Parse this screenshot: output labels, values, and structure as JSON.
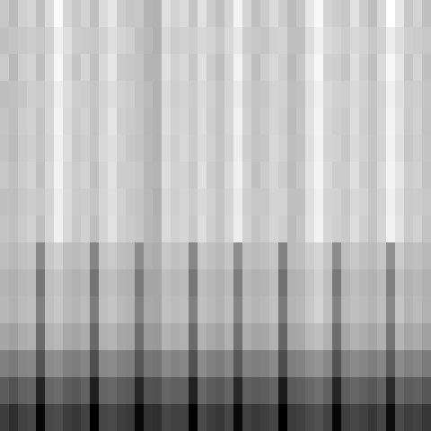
{
  "chart_data": {
    "type": "heatmap",
    "tick_labels": false,
    "cells": [
      [
        178,
        168,
        185,
        190,
        172,
        195,
        222,
        190,
        178,
        188,
        170,
        195,
        205,
        182,
        176,
        178,
        162,
        160,
        198,
        188,
        195,
        176,
        200,
        182,
        172,
        188,
        215,
        190,
        172,
        182,
        195,
        182,
        168,
        178,
        205,
        220,
        188,
        182,
        178,
        200,
        182,
        170,
        192,
        225,
        205,
        178,
        188,
        172
      ],
      [
        172,
        174,
        178,
        182,
        178,
        186,
        212,
        198,
        182,
        180,
        178,
        186,
        198,
        188,
        184,
        172,
        166,
        158,
        192,
        182,
        186,
        184,
        192,
        188,
        178,
        192,
        206,
        182,
        178,
        176,
        186,
        188,
        172,
        172,
        196,
        212,
        194,
        188,
        182,
        192,
        188,
        178,
        186,
        210,
        196,
        184,
        182,
        178
      ],
      [
        180,
        166,
        184,
        188,
        170,
        192,
        218,
        192,
        176,
        190,
        172,
        192,
        204,
        180,
        178,
        176,
        162,
        162,
        198,
        186,
        192,
        178,
        198,
        182,
        170,
        188,
        214,
        188,
        170,
        184,
        192,
        184,
        166,
        178,
        202,
        218,
        186,
        184,
        176,
        198,
        184,
        172,
        194,
        218,
        202,
        176,
        188,
        172
      ],
      [
        170,
        172,
        176,
        184,
        180,
        188,
        210,
        196,
        184,
        182,
        176,
        188,
        196,
        186,
        182,
        174,
        168,
        160,
        194,
        184,
        188,
        182,
        194,
        186,
        176,
        190,
        208,
        184,
        176,
        178,
        188,
        186,
        170,
        174,
        198,
        212,
        192,
        186,
        184,
        194,
        186,
        176,
        188,
        212,
        198,
        182,
        184,
        176
      ],
      [
        176,
        170,
        182,
        186,
        174,
        190,
        216,
        194,
        180,
        186,
        174,
        190,
        202,
        184,
        180,
        176,
        164,
        160,
        196,
        186,
        190,
        180,
        196,
        184,
        174,
        190,
        212,
        186,
        174,
        180,
        190,
        184,
        168,
        176,
        200,
        216,
        190,
        184,
        180,
        196,
        184,
        174,
        190,
        216,
        200,
        180,
        186,
        174
      ],
      [
        174,
        168,
        180,
        184,
        176,
        188,
        212,
        196,
        178,
        184,
        176,
        192,
        198,
        186,
        178,
        174,
        166,
        160,
        194,
        184,
        192,
        182,
        194,
        186,
        176,
        188,
        210,
        184,
        176,
        178,
        192,
        186,
        170,
        174,
        198,
        214,
        188,
        186,
        178,
        194,
        186,
        176,
        188,
        214,
        198,
        178,
        184,
        176
      ],
      [
        178,
        172,
        182,
        188,
        172,
        192,
        214,
        192,
        182,
        188,
        172,
        188,
        200,
        182,
        182,
        178,
        164,
        162,
        196,
        186,
        188,
        178,
        198,
        182,
        174,
        192,
        212,
        188,
        172,
        182,
        190,
        182,
        168,
        178,
        200,
        216,
        192,
        182,
        182,
        198,
        182,
        174,
        192,
        216,
        202,
        182,
        186,
        174
      ],
      [
        172,
        170,
        178,
        182,
        178,
        188,
        210,
        194,
        180,
        182,
        176,
        190,
        198,
        186,
        178,
        174,
        166,
        158,
        192,
        184,
        190,
        182,
        192,
        186,
        176,
        188,
        208,
        184,
        178,
        178,
        188,
        188,
        172,
        172,
        198,
        212,
        188,
        186,
        178,
        192,
        188,
        176,
        188,
        212,
        198,
        180,
        182,
        178
      ],
      [
        176,
        172,
        180,
        186,
        170,
        190,
        212,
        192,
        178,
        186,
        170,
        188,
        200,
        184,
        180,
        176,
        164,
        160,
        194,
        186,
        190,
        178,
        196,
        184,
        174,
        190,
        210,
        186,
        174,
        180,
        190,
        184,
        168,
        176,
        200,
        214,
        190,
        184,
        180,
        196,
        184,
        174,
        190,
        214,
        200,
        180,
        186,
        174
      ],
      [
        170,
        165,
        172,
        175,
        125,
        178,
        185,
        170,
        168,
        172,
        122,
        175,
        180,
        170,
        168,
        128,
        158,
        155,
        178,
        172,
        175,
        124,
        178,
        172,
        166,
        176,
        130,
        172,
        168,
        170,
        176,
        120,
        168,
        170,
        182,
        190,
        176,
        128,
        170,
        178,
        172,
        168,
        176,
        132,
        180,
        168,
        172,
        166
      ],
      [
        162,
        158,
        165,
        168,
        110,
        170,
        175,
        165,
        160,
        165,
        108,
        168,
        172,
        162,
        160,
        112,
        150,
        150,
        170,
        165,
        168,
        110,
        170,
        165,
        158,
        168,
        115,
        165,
        160,
        162,
        170,
        105,
        160,
        162,
        175,
        185,
        170,
        112,
        162,
        170,
        165,
        160,
        168,
        118,
        172,
        160,
        165,
        158
      ],
      [
        165,
        160,
        168,
        170,
        118,
        172,
        178,
        166,
        162,
        168,
        115,
        170,
        175,
        165,
        162,
        120,
        152,
        150,
        172,
        168,
        170,
        118,
        172,
        166,
        160,
        170,
        122,
        168,
        162,
        165,
        172,
        112,
        162,
        165,
        178,
        188,
        172,
        120,
        165,
        172,
        168,
        162,
        170,
        125,
        175,
        162,
        168,
        160
      ],
      [
        150,
        145,
        155,
        158,
        100,
        160,
        165,
        152,
        148,
        155,
        98,
        158,
        162,
        150,
        148,
        102,
        140,
        138,
        160,
        155,
        158,
        100,
        160,
        152,
        146,
        158,
        105,
        155,
        148,
        150,
        160,
        95,
        150,
        152,
        165,
        170,
        158,
        102,
        150,
        160,
        155,
        148,
        158,
        108,
        162,
        150,
        155,
        146
      ],
      [
        118,
        112,
        122,
        125,
        80,
        128,
        130,
        118,
        115,
        122,
        76,
        125,
        128,
        118,
        115,
        82,
        110,
        108,
        126,
        120,
        124,
        78,
        128,
        118,
        114,
        125,
        84,
        120,
        116,
        118,
        126,
        74,
        116,
        120,
        130,
        135,
        124,
        80,
        118,
        126,
        122,
        115,
        124,
        86,
        128,
        118,
        122,
        114
      ],
      [
        88,
        80,
        92,
        95,
        40,
        96,
        100,
        88,
        84,
        92,
        36,
        94,
        98,
        88,
        85,
        42,
        80,
        78,
        96,
        90,
        92,
        38,
        98,
        88,
        84,
        94,
        44,
        90,
        86,
        88,
        95,
        34,
        86,
        90,
        98,
        104,
        92,
        40,
        88,
        96,
        90,
        84,
        94,
        46,
        98,
        88,
        92,
        84
      ],
      [
        62,
        50,
        66,
        70,
        14,
        70,
        74,
        62,
        56,
        66,
        10,
        68,
        72,
        62,
        58,
        16,
        52,
        50,
        70,
        64,
        66,
        12,
        72,
        62,
        56,
        68,
        18,
        64,
        58,
        62,
        68,
        10,
        60,
        64,
        72,
        78,
        66,
        14,
        62,
        70,
        64,
        56,
        68,
        20,
        72,
        62,
        66,
        56
      ]
    ]
  }
}
